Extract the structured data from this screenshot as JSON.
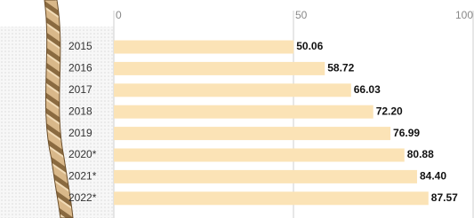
{
  "chart_data": {
    "type": "bar",
    "orientation": "horizontal",
    "categories": [
      "2015",
      "2016",
      "2017",
      "2018",
      "2019",
      "2020*",
      "2021*",
      "2022*"
    ],
    "values": [
      50.06,
      58.72,
      66.03,
      72.2,
      76.99,
      80.88,
      84.4,
      87.57
    ],
    "value_labels": [
      "50.06",
      "58.72",
      "66.03",
      "72.20",
      "76.99",
      "80.88",
      "84.40",
      "87.57"
    ],
    "color": "#fbe3b6",
    "xlim": [
      0,
      100
    ],
    "xticks": [
      0,
      50,
      100
    ],
    "grid": true
  }
}
